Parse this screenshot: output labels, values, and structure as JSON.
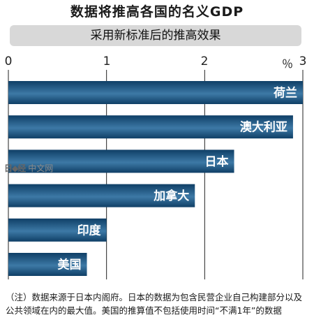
{
  "title": "数据将推高各国的名义GDP",
  "subtitle": "采用新标准后的推高效果",
  "watermark": {
    "glyphs": "日◆经",
    "text": "中文网"
  },
  "note": "（注）数据来源于日本内阁府。日本的数据为包含民营企业自己构建部分以及公共领域在内的最大值。美国的推算值不包括使用时间“不满1年”的数据",
  "colors": {
    "bar_dark": "#0f3f66",
    "bar_light": "#3d79a6",
    "gridline": "#222222"
  },
  "chart_data": {
    "type": "bar",
    "orientation": "horizontal",
    "unit": "％",
    "xlim": [
      0,
      3
    ],
    "ticks": [
      "0",
      "1",
      "2",
      "3"
    ],
    "categories": [
      "荷兰",
      "澳大利亚",
      "日本",
      "加拿大",
      "印度",
      "美国"
    ],
    "values": [
      3.0,
      2.9,
      2.3,
      1.9,
      1.0,
      0.8
    ]
  }
}
